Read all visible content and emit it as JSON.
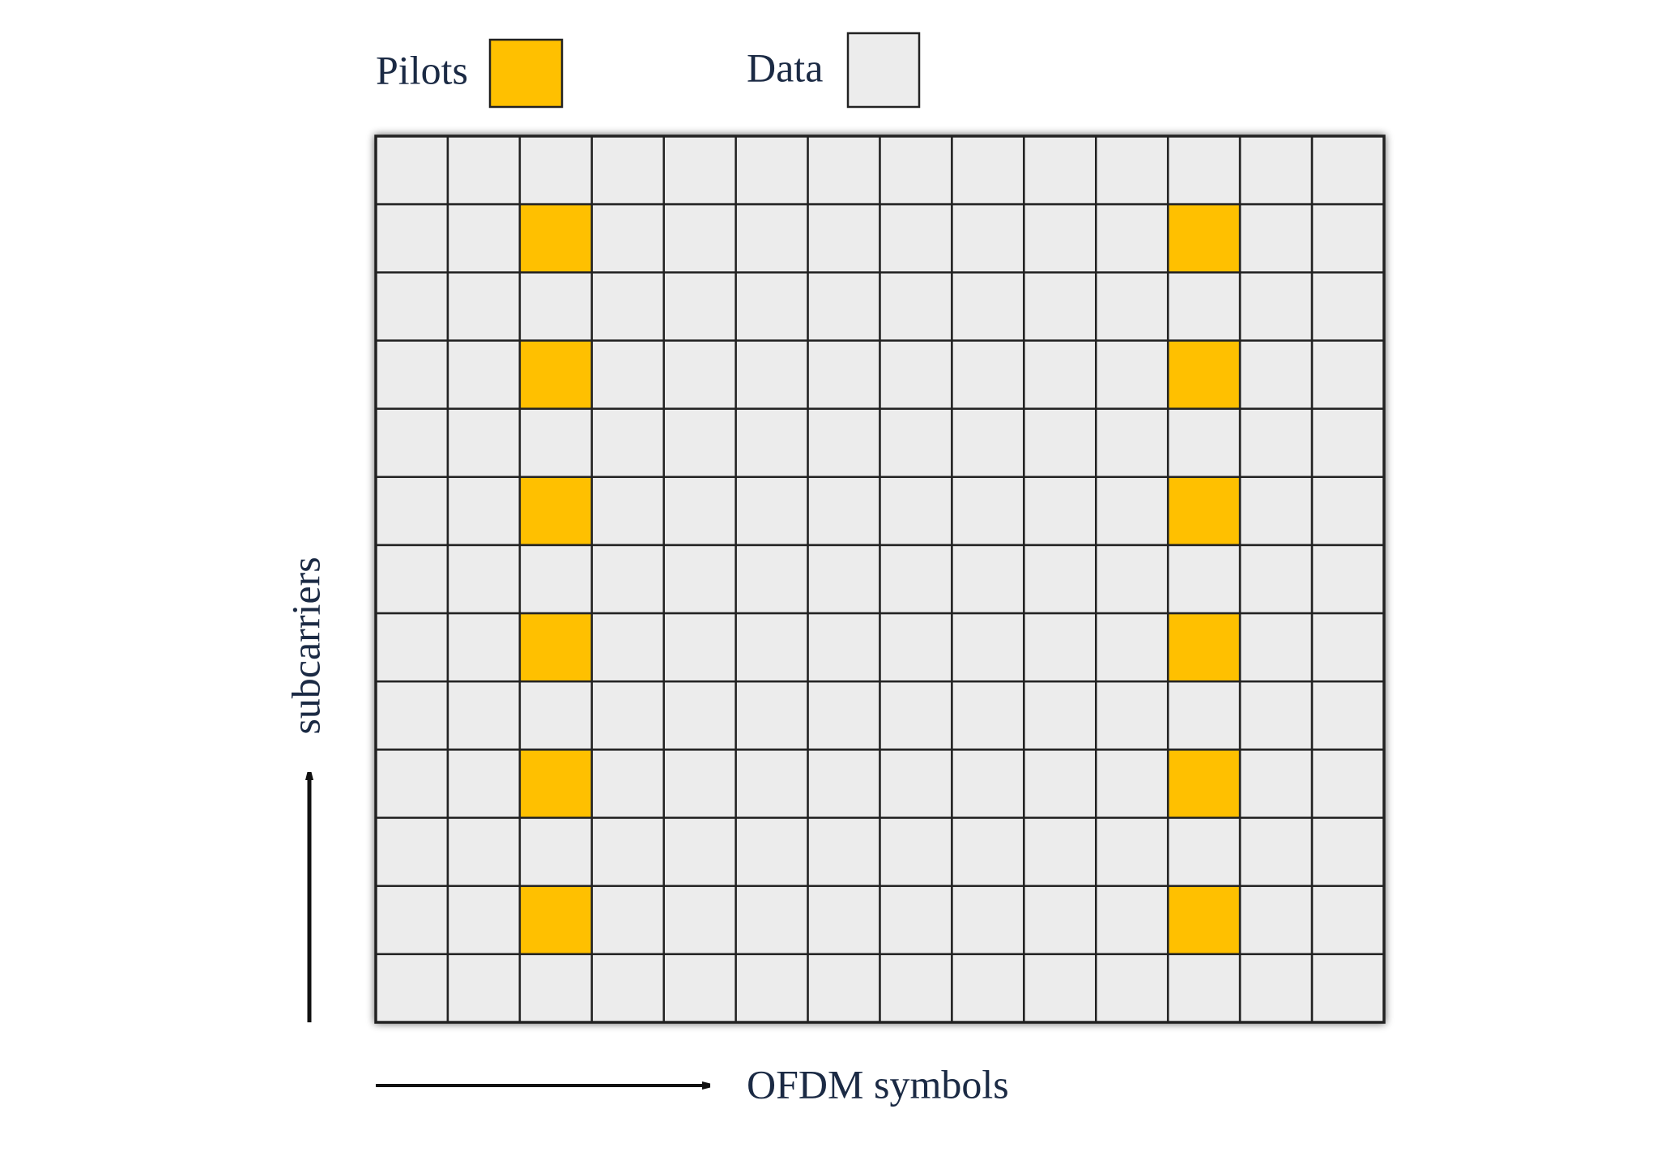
{
  "legend": {
    "pilots": "Pilots",
    "data": "Data"
  },
  "axes": {
    "vertical": "subcarriers",
    "horizontal": "OFDM symbols"
  }
}
